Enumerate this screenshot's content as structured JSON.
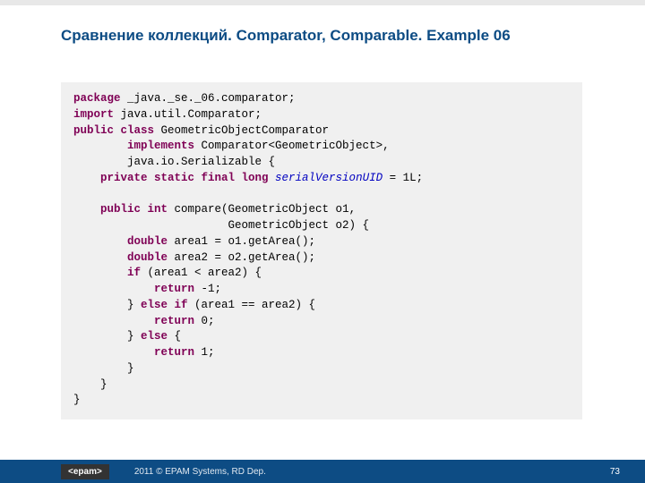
{
  "title": "Сравнение коллекций. Comparator, Comparable. Example 06",
  "code": {
    "l1_kw": "package",
    "l1_rest": " _java._se._06.comparator;",
    "l2_kw": "import",
    "l2_rest": " java.util.Comparator;",
    "l3_kw1": "public",
    "l3_kw2": " class",
    "l3_rest": " GeometricObjectComparator",
    "l4_kw": "implements",
    "l4_rest": " Comparator<GeometricObject>,",
    "l5": "        java.io.Serializable {",
    "l6_kw": "private static final long",
    "l6_field": " serialVersionUID",
    "l6_rest": " = 1L;",
    "l8_kw": "public int",
    "l8_rest": " compare(GeometricObject o1,",
    "l9": "                       GeometricObject o2) {",
    "l10_kw": "double",
    "l10_rest": " area1 = o1.getArea();",
    "l11_kw": "double",
    "l11_rest": " area2 = o2.getArea();",
    "l12_kw": "if",
    "l12_rest": " (area1 < area2) {",
    "l13_kw": "return",
    "l13_rest": " -1;",
    "l14a": "        } ",
    "l14_kw": "else if",
    "l14_rest": " (area1 == area2) {",
    "l15_kw": "return",
    "l15_rest": " 0;",
    "l16a": "        } ",
    "l16_kw": "else",
    "l16_rest": " {",
    "l17_kw": "return",
    "l17_rest": " 1;",
    "l18": "        }",
    "l19": "    }",
    "l20": "}"
  },
  "footer": {
    "logo": "<epam>",
    "text": "2011 © EPAM Systems, RD Dep.",
    "page": "73"
  },
  "colors": {
    "title": "#0d4c84",
    "codeBg": "#f0f0f0",
    "keyword": "#7f0055",
    "field": "#0000c0",
    "footerBg": "#0d4c84",
    "logoBg": "#333333"
  }
}
